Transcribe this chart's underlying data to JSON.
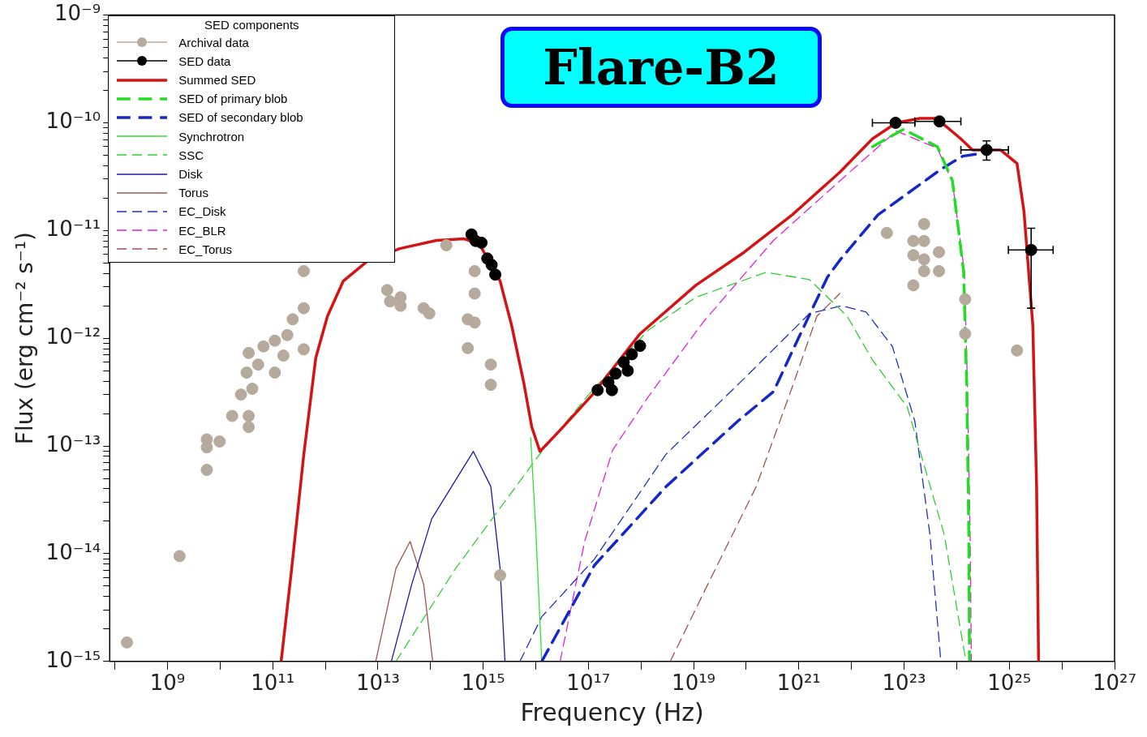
{
  "chart_data": {
    "type": "line",
    "title": "Flare-B2",
    "xlabel": "Frequency (Hz)",
    "ylabel": "Flux (erg cm⁻² s⁻¹)",
    "legend_title": "SED components",
    "legend": "top left",
    "log": "xy",
    "grid": false,
    "xlim": [
      80000000.0,
      1e+27
    ],
    "xticks": [
      {
        "value": 100000000.0,
        "label": null
      },
      {
        "value": 1000000000.0,
        "label": "10⁹"
      },
      {
        "value": 10000000000.0,
        "label": null
      },
      {
        "value": 100000000000.0,
        "label": "10¹¹"
      },
      {
        "value": 1000000000000.0,
        "label": null
      },
      {
        "value": 10000000000000.0,
        "label": "10¹³"
      },
      {
        "value": 100000000000000.0,
        "label": null
      },
      {
        "value": 1000000000000000.0,
        "label": "10¹⁵"
      },
      {
        "value": 1e+16,
        "label": null
      },
      {
        "value": 1e+17,
        "label": "10¹⁷"
      },
      {
        "value": 1e+18,
        "label": null
      },
      {
        "value": 1e+19,
        "label": "10¹⁹"
      },
      {
        "value": 1e+20,
        "label": null
      },
      {
        "value": 1e+21,
        "label": "10²¹"
      },
      {
        "value": 1e+22,
        "label": null
      },
      {
        "value": 1e+23,
        "label": "10²³"
      },
      {
        "value": 1e+24,
        "label": null
      },
      {
        "value": 1e+25,
        "label": "10²⁵"
      },
      {
        "value": 1e+26,
        "label": null
      },
      {
        "value": 1e+27,
        "label": "10²⁷"
      }
    ],
    "ylim": [
      1e-15,
      1e-09
    ],
    "yticks": [
      {
        "value": 1e-15,
        "label": "10⁻¹⁵"
      },
      {
        "value": 2e-15,
        "label": null
      },
      {
        "value": 3e-15,
        "label": null
      },
      {
        "value": 4e-15,
        "label": null
      },
      {
        "value": 5e-15,
        "label": null
      },
      {
        "value": 6e-15,
        "label": null
      },
      {
        "value": 7e-15,
        "label": null
      },
      {
        "value": 8e-15,
        "label": null
      },
      {
        "value": 9e-15,
        "label": null
      },
      {
        "value": 1e-14,
        "label": "10⁻¹⁴"
      },
      {
        "value": 2e-14,
        "label": null
      },
      {
        "value": 3e-14,
        "label": null
      },
      {
        "value": 4e-14,
        "label": null
      },
      {
        "value": 5e-14,
        "label": null
      },
      {
        "value": 6e-14,
        "label": null
      },
      {
        "value": 7e-14,
        "label": null
      },
      {
        "value": 8e-14,
        "label": null
      },
      {
        "value": 9e-14,
        "label": null
      },
      {
        "value": 1e-13,
        "label": "10⁻¹³"
      },
      {
        "value": 2e-13,
        "label": null
      },
      {
        "value": 3e-13,
        "label": null
      },
      {
        "value": 4e-13,
        "label": null
      },
      {
        "value": 5e-13,
        "label": null
      },
      {
        "value": 6e-13,
        "label": null
      },
      {
        "value": 7e-13,
        "label": null
      },
      {
        "value": 8e-13,
        "label": null
      },
      {
        "value": 9e-13,
        "label": null
      },
      {
        "value": 1e-12,
        "label": "10⁻¹²"
      },
      {
        "value": 2e-12,
        "label": null
      },
      {
        "value": 3e-12,
        "label": null
      },
      {
        "value": 4e-12,
        "label": null
      },
      {
        "value": 5e-12,
        "label": null
      },
      {
        "value": 6e-12,
        "label": null
      },
      {
        "value": 7e-12,
        "label": null
      },
      {
        "value": 8e-12,
        "label": null
      },
      {
        "value": 9e-12,
        "label": null
      },
      {
        "value": 1e-11,
        "label": "10⁻¹¹"
      },
      {
        "value": 2e-11,
        "label": null
      },
      {
        "value": 3e-11,
        "label": null
      },
      {
        "value": 4e-11,
        "label": null
      },
      {
        "value": 5e-11,
        "label": null
      },
      {
        "value": 6e-11,
        "label": null
      },
      {
        "value": 7e-11,
        "label": null
      },
      {
        "value": 8e-11,
        "label": null
      },
      {
        "value": 9e-11,
        "label": null
      },
      {
        "value": 1e-10,
        "label": "10⁻¹⁰"
      },
      {
        "value": 2e-10,
        "label": null
      },
      {
        "value": 3e-10,
        "label": null
      },
      {
        "value": 4e-10,
        "label": null
      },
      {
        "value": 5e-10,
        "label": null
      },
      {
        "value": 6e-10,
        "label": null
      },
      {
        "value": 7e-10,
        "label": null
      },
      {
        "value": 8e-10,
        "label": null
      },
      {
        "value": 9e-10,
        "label": null
      },
      {
        "value": 1e-09,
        "label": "10⁻⁹"
      }
    ],
    "series": [
      {
        "name": "Archival data",
        "type": "scatter",
        "marker": "circle",
        "color": "#b5aa9b",
        "x": [
          170000000.0,
          1700000000.0,
          5600000000.0,
          5600000000.0,
          9800000000.0,
          5600000000.0,
          17000000000.0,
          35000000000.0,
          35000000000.0,
          25000000000.0,
          41000000000.0,
          32000000000.0,
          53000000000.0,
          35000000000.0,
          67000000000.0,
          110000000000.0,
          190000000000.0,
          240000000000.0,
          390000000000.0,
          390000000000.0,
          390000000000.0,
          110000000000.0,
          160000000000.0,
          15000000000000.0,
          17000000000000.0,
          27000000000000.0,
          27000000000000.0,
          74000000000000.0,
          95000000000000.0,
          200000000000000.0,
          690000000000000.0,
          690000000000000.0,
          510000000000000.0,
          690000000000000.0,
          510000000000000.0,
          1400000000000000.0,
          1400000000000000.0,
          2100000000000000.0,
          4.7e+22,
          1.5e+23,
          1.5e+23,
          1.5e+23,
          2.4e+23,
          2.4e+23,
          2.4e+23,
          2.4e+23,
          4.6e+23,
          4.6e+23,
          1.45e+24,
          1.45e+24,
          1.4e+25
        ],
        "values": [
          1.5e-15,
          9.5e-15,
          1.15e-13,
          9.7e-14,
          1.1e-13,
          6e-14,
          1.9e-13,
          1.9e-13,
          1.5e-13,
          3e-13,
          3.4e-13,
          4.8e-13,
          5.7e-13,
          7.3e-13,
          8.4e-13,
          9.5e-13,
          1.07e-12,
          1.5e-12,
          1.9e-12,
          7.9e-13,
          4.2e-12,
          4.8e-13,
          6.9e-13,
          2.8e-12,
          2.2e-12,
          2.4e-12,
          2e-12,
          1.9e-12,
          1.7e-12,
          7.3e-12,
          4.2e-12,
          2.6e-12,
          1.5e-12,
          1.4e-12,
          8.1e-13,
          5.7e-13,
          3.7e-13,
          6.3e-15,
          9.5e-12,
          8e-12,
          5.9e-12,
          3.1e-12,
          1.15e-11,
          8e-12,
          5.4e-12,
          4.2e-12,
          6.3e-12,
          4.2e-12,
          2.3e-12,
          1.1e-12,
          7.7e-13
        ]
      },
      {
        "name": "SED data",
        "type": "scatter",
        "marker": "circle",
        "color": "#000000",
        "x": [
          600000000000000.0,
          720000000000000.0,
          930000000000000.0,
          1200000000000000.0,
          1450000000000000.0,
          1700000000000000.0,
          1.5e+17,
          2.4e+17,
          2.8e+17,
          3.3e+17,
          4.7e+17,
          5.6e+17,
          6.7e+17,
          9.6e+17,
          6.9e+22,
          4.7e+23,
          3.7e+24,
          2.6e+25
        ],
        "values": [
          9.2e-12,
          8e-12,
          7.7e-12,
          5.5e-12,
          4.8e-12,
          3.9e-12,
          3.3e-13,
          3.9e-13,
          3.3e-13,
          4.7e-13,
          6e-13,
          5e-13,
          7.1e-13,
          8.5e-13,
          1e-10,
          1.03e-10,
          5.6e-11,
          6.6e-12
        ],
        "errors": [
          null,
          null,
          null,
          null,
          null,
          null,
          null,
          null,
          null,
          null,
          null,
          null,
          null,
          null,
          null,
          null,
          [
            4.5e-11,
            6.8e-11
          ],
          [
            1.9e-12,
            1.05e-11
          ]
        ],
        "xerrors": [
          null,
          null,
          null,
          null,
          null,
          null,
          null,
          null,
          null,
          null,
          null,
          null,
          null,
          null,
          [
            2.5e+22,
            1.6e+23
          ],
          [
            1.6e+23,
            1.2e+24
          ],
          [
            1.2e+24,
            9.6e+24
          ],
          [
            9.6e+24,
            6.8e+25
          ]
        ]
      },
      {
        "name": "Summed SED",
        "line_style": "solid",
        "color": "#d41414",
        "x": [
          145000000000.0,
          230000000000.0,
          390000000000.0,
          660000000000.0,
          1100000000000.0,
          2200000000000.0,
          6300000000000.0,
          26000000000000.0,
          130000000000000.0,
          430000000000000.0,
          860000000000000.0,
          2100000000000000.0,
          3500000000000000.0,
          5900000000000000.0,
          8400000000000000.0,
          1.2e+16,
          2.9e+16,
          1.2e+17,
          9.6e+17,
          1.1e+19,
          9.2e+19,
          7.5e+20,
          6.1e+21,
          2.5e+22,
          7.1e+22,
          2e+23,
          4.1e+23,
          1.2e+24,
          2e+24,
          6.8e+24,
          1.4e+25,
          1.9e+25,
          2.8e+25,
          3.3e+25,
          3.6e+25
        ],
        "values": [
          1e-15,
          7.3e-15,
          8.3e-14,
          6.6e-13,
          1.6e-12,
          3.4e-12,
          5.2e-12,
          6.8e-12,
          8.1e-12,
          8.4e-12,
          7.4e-12,
          3.4e-12,
          1.3e-12,
          3.9e-13,
          1.5e-13,
          8.9e-14,
          1.4e-13,
          3e-13,
          1.1e-12,
          3.1e-12,
          6.3e-12,
          1.4e-11,
          3.5e-11,
          7.1e-11,
          1e-10,
          1.1e-10,
          1.1e-10,
          7.1e-11,
          5.6e-11,
          5.6e-11,
          4.2e-11,
          1.5e-11,
          1.3e-12,
          4.2e-14,
          1e-15
        ]
      },
      {
        "name": "SED of primary blob",
        "line_style": "dashed",
        "color": "#22dd22",
        "x": [
          2.5e+22,
          9.8e+22,
          4.3e+23,
          8.3e+23,
          1.35e+24,
          1.55e+24,
          1.7e+24,
          1.75e+24
        ],
        "values": [
          6e-11,
          8.7e-11,
          6e-11,
          2.9e-11,
          4.2e-12,
          3.7e-13,
          1.5e-14,
          1e-15
        ]
      },
      {
        "name": "SED of secondary blob",
        "line_style": "dashed",
        "color": "#1428c8",
        "x": [
          1.3e+16,
          1.3e+17,
          3e+18,
          6.9e+19,
          3.3e+20,
          9.8e+20,
          3.5e+21,
          6.2e+21,
          3.2e+22,
          5e+23,
          1.3e+24,
          3e+24
        ],
        "values": [
          1e-15,
          7.8e-15,
          4.2e-14,
          1.7e-13,
          3.2e-13,
          1e-12,
          3.7e-12,
          5.4e-12,
          1.4e-11,
          3.7e-11,
          4.9e-11,
          5.2e-11
        ]
      },
      {
        "name": "Synchrotron",
        "line_style": "solid",
        "color": "#33dd33",
        "x": [
          8000000000000000.0,
          1e+16,
          1.3e+16
        ],
        "values": [
          1.2e-13,
          1.7e-14,
          1e-15
        ]
      },
      {
        "name": "SSC",
        "line_style": "dashed",
        "color": "#33cc33",
        "x": [
          22000000000000.0,
          300000000000000.0,
          1.3e+16,
          1.2e+17,
          1.4e+18,
          1.1e+19,
          2.4e+20,
          1.6e+21,
          8.3e+21,
          2.5e+22,
          1.15e+23,
          5.8e+23,
          1.5e+24
        ],
        "values": [
          1e-15,
          7.3e-15,
          8.9e-14,
          3.3e-13,
          1.2e-12,
          2.4e-12,
          4.1e-12,
          3.5e-12,
          1.6e-12,
          6.3e-13,
          2.3e-13,
          1.5e-14,
          1e-15
        ]
      },
      {
        "name": "Disk",
        "line_style": "solid",
        "color": "#1a1aa0",
        "x": [
          18000000000000.0,
          44000000000000.0,
          105000000000000.0,
          650000000000000.0,
          1400000000000000.0,
          2100000000000000.0,
          2600000000000000.0
        ],
        "values": [
          1e-15,
          5.2e-15,
          2.1e-14,
          8.9e-14,
          4.2e-14,
          7.3e-15,
          1e-15
        ]
      },
      {
        "name": "Torus",
        "line_style": "solid",
        "color": "#a0524d",
        "x": [
          9100000000000.0,
          22000000000000.0,
          41000000000000.0,
          74000000000000.0,
          110000000000000.0
        ],
        "values": [
          1e-15,
          7.3e-15,
          1.3e-14,
          5.2e-15,
          1e-15
        ]
      },
      {
        "name": "EC_Disk",
        "line_style": "dashed",
        "color": "#2030c0",
        "x": [
          5000000000000000.0,
          1.3e+16,
          1.3e+17,
          3e+18,
          6.9e+19,
          1.6e+21,
          6.6e+21,
          1.9e+22,
          6e+22,
          1.6e+23,
          3.1e+23,
          5e+23
        ],
        "values": [
          1e-15,
          2.6e-15,
          8.9e-15,
          8.4e-14,
          3.7e-13,
          1.7e-12,
          2e-12,
          1.75e-12,
          8.4e-13,
          1.7e-13,
          1.5e-14,
          1e-15
        ]
      },
      {
        "name": "EC_BLR",
        "line_style": "dashed",
        "color": "#dd22dd",
        "x": [
          2.9e+16,
          8.5e+16,
          2.9e+17,
          1.4e+18,
          1.5e+19,
          3.3e+20,
          7.6e+21,
          7.1e+22,
          4.3e+23,
          8.3e+23,
          1.4e+24,
          1.6e+24,
          1.8e+24,
          1.9e+24
        ],
        "values": [
          1e-15,
          1.3e-14,
          9.2e-14,
          2.9e-13,
          1.4e-12,
          8.1e-12,
          3.2e-11,
          8.4e-11,
          5.8e-11,
          2.8e-11,
          4.2e-12,
          3.7e-13,
          1.5e-14,
          1e-15
        ]
      },
      {
        "name": "EC_Torus",
        "line_style": "dashed",
        "color": "#a0524d",
        "x": [
          3.6e+18,
          1.5e+19,
          1.55e+20,
          7.3e+20,
          2.2e+21,
          6e+21
        ],
        "values": [
          1e-15,
          4.2e-15,
          4.2e-14,
          3.4e-13,
          1.6e-12,
          2.6e-12
        ]
      }
    ]
  }
}
